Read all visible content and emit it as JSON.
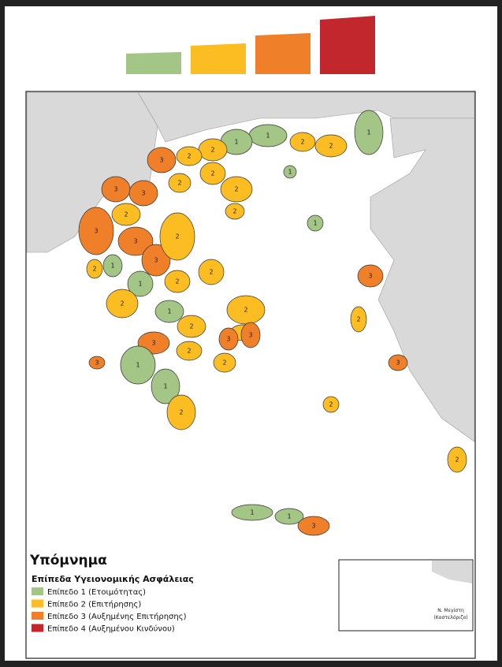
{
  "legend": {
    "title": "Υπόμνημα",
    "subtitle": "Επίπεδα Υγειονομικής Ασφάλειας",
    "levels": [
      {
        "label": "Επίπεδο 1 (Ετοιμότητας)",
        "color": "#a3c585"
      },
      {
        "label": "Επίπεδο 2 (Επιτήρησης)",
        "color": "#fbbd22"
      },
      {
        "label": "Επίπεδο 3 (Αυξημένης Επιτήρησης)",
        "color": "#f07f29"
      },
      {
        "label": "Επίπεδο 4 (Αυξημένου Κινδύνου)",
        "color": "#c1272d"
      }
    ]
  },
  "regions": [
    1,
    1,
    2,
    2,
    1,
    1,
    2,
    2,
    3,
    2,
    2,
    2,
    2,
    3,
    3,
    2,
    3,
    3,
    3,
    2,
    1,
    2,
    1,
    2,
    1,
    2,
    2,
    2,
    2,
    2,
    3,
    2,
    3,
    3,
    2,
    1,
    1,
    2,
    3,
    1,
    3,
    2,
    3,
    2,
    2,
    1,
    1,
    3,
    2
  ],
  "inset": {
    "label_lines": [
      "Ν. Μεγίστη",
      "(Καστελόριζο)"
    ]
  }
}
